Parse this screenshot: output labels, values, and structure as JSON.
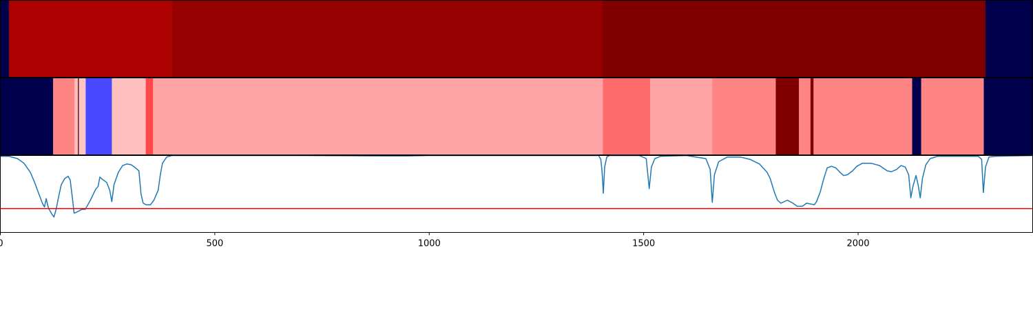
{
  "chart_data": {
    "type": "heatmap",
    "xlim": [
      0,
      2407
    ],
    "x_ticks": [
      0,
      500,
      1000,
      1500,
      2000
    ],
    "x_tick_labels": [
      "0",
      "500",
      "1000",
      "1500",
      "2000"
    ],
    "top_band": {
      "segments": [
        {
          "x0": 0,
          "x1": 20,
          "color": "#00004c"
        },
        {
          "x0": 20,
          "x1": 400,
          "color": "#ad0000"
        },
        {
          "x0": 400,
          "x1": 1405,
          "color": "#960000"
        },
        {
          "x0": 1405,
          "x1": 2297,
          "color": "#800000"
        },
        {
          "x0": 2297,
          "x1": 2407,
          "color": "#00004c"
        }
      ]
    },
    "middle_band": {
      "segments": [
        {
          "x0": 0,
          "x1": 123,
          "color": "#00004c"
        },
        {
          "x0": 123,
          "x1": 173,
          "color": "#ff8484"
        },
        {
          "x0": 173,
          "x1": 181,
          "color": "#ffbdbd"
        },
        {
          "x0": 181,
          "x1": 183,
          "color": "#400000"
        },
        {
          "x0": 183,
          "x1": 199,
          "color": "#ffc4c4"
        },
        {
          "x0": 199,
          "x1": 260,
          "color": "#4848ff"
        },
        {
          "x0": 260,
          "x1": 339,
          "color": "#ffc0c0"
        },
        {
          "x0": 339,
          "x1": 356,
          "color": "#ff4848"
        },
        {
          "x0": 356,
          "x1": 1405,
          "color": "#ffa4a4"
        },
        {
          "x0": 1405,
          "x1": 1515,
          "color": "#ff6a6a"
        },
        {
          "x0": 1515,
          "x1": 1660,
          "color": "#ffa4a4"
        },
        {
          "x0": 1660,
          "x1": 1808,
          "color": "#ff8484"
        },
        {
          "x0": 1808,
          "x1": 1862,
          "color": "#800000"
        },
        {
          "x0": 1862,
          "x1": 1889,
          "color": "#ff8484"
        },
        {
          "x0": 1889,
          "x1": 1896,
          "color": "#800000"
        },
        {
          "x0": 1896,
          "x1": 2126,
          "color": "#ff8484"
        },
        {
          "x0": 2126,
          "x1": 2147,
          "color": "#00004c"
        },
        {
          "x0": 2147,
          "x1": 2293,
          "color": "#ff8484"
        },
        {
          "x0": 2293,
          "x1": 2407,
          "color": "#00004c"
        }
      ]
    },
    "line_panel": {
      "ylim": [
        0,
        1
      ],
      "threshold": 0.31,
      "threshold_color": "#ff0000",
      "line_color": "#1f77b4",
      "points": [
        [
          0,
          0.99
        ],
        [
          20,
          0.99
        ],
        [
          40,
          0.96
        ],
        [
          55,
          0.9
        ],
        [
          70,
          0.78
        ],
        [
          80,
          0.65
        ],
        [
          90,
          0.5
        ],
        [
          98,
          0.38
        ],
        [
          103,
          0.33
        ],
        [
          107,
          0.44
        ],
        [
          112,
          0.32
        ],
        [
          120,
          0.24
        ],
        [
          125,
          0.2
        ],
        [
          130,
          0.3
        ],
        [
          135,
          0.44
        ],
        [
          142,
          0.62
        ],
        [
          150,
          0.7
        ],
        [
          158,
          0.73
        ],
        [
          163,
          0.68
        ],
        [
          168,
          0.45
        ],
        [
          172,
          0.25
        ],
        [
          180,
          0.27
        ],
        [
          190,
          0.3
        ],
        [
          198,
          0.3
        ],
        [
          210,
          0.42
        ],
        [
          222,
          0.56
        ],
        [
          228,
          0.6
        ],
        [
          232,
          0.72
        ],
        [
          238,
          0.69
        ],
        [
          248,
          0.65
        ],
        [
          255,
          0.55
        ],
        [
          260,
          0.4
        ],
        [
          265,
          0.62
        ],
        [
          275,
          0.78
        ],
        [
          285,
          0.87
        ],
        [
          295,
          0.89
        ],
        [
          305,
          0.88
        ],
        [
          315,
          0.84
        ],
        [
          323,
          0.8
        ],
        [
          328,
          0.5
        ],
        [
          333,
          0.38
        ],
        [
          340,
          0.36
        ],
        [
          350,
          0.36
        ],
        [
          358,
          0.42
        ],
        [
          368,
          0.55
        ],
        [
          373,
          0.75
        ],
        [
          378,
          0.9
        ],
        [
          388,
          0.98
        ],
        [
          400,
          1.0
        ],
        [
          700,
          1.0
        ],
        [
          900,
          0.995
        ],
        [
          950,
          0.995
        ],
        [
          1000,
          1.0
        ],
        [
          1395,
          1.0
        ],
        [
          1400,
          0.95
        ],
        [
          1403,
          0.8
        ],
        [
          1406,
          0.51
        ],
        [
          1409,
          0.85
        ],
        [
          1414,
          0.98
        ],
        [
          1420,
          1.0
        ],
        [
          1490,
          1.0
        ],
        [
          1506,
          0.96
        ],
        [
          1513,
          0.57
        ],
        [
          1518,
          0.85
        ],
        [
          1526,
          0.96
        ],
        [
          1540,
          0.99
        ],
        [
          1600,
          1.0
        ],
        [
          1645,
          0.96
        ],
        [
          1655,
          0.82
        ],
        [
          1660,
          0.39
        ],
        [
          1665,
          0.75
        ],
        [
          1675,
          0.92
        ],
        [
          1695,
          0.98
        ],
        [
          1725,
          0.98
        ],
        [
          1748,
          0.95
        ],
        [
          1770,
          0.89
        ],
        [
          1788,
          0.78
        ],
        [
          1795,
          0.7
        ],
        [
          1805,
          0.52
        ],
        [
          1812,
          0.42
        ],
        [
          1820,
          0.38
        ],
        [
          1835,
          0.42
        ],
        [
          1848,
          0.38
        ],
        [
          1858,
          0.34
        ],
        [
          1870,
          0.34
        ],
        [
          1880,
          0.38
        ],
        [
          1898,
          0.36
        ],
        [
          1903,
          0.4
        ],
        [
          1912,
          0.53
        ],
        [
          1920,
          0.7
        ],
        [
          1928,
          0.84
        ],
        [
          1938,
          0.86
        ],
        [
          1948,
          0.84
        ],
        [
          1958,
          0.78
        ],
        [
          1966,
          0.74
        ],
        [
          1975,
          0.75
        ],
        [
          1987,
          0.8
        ],
        [
          1997,
          0.86
        ],
        [
          2010,
          0.9
        ],
        [
          2030,
          0.9
        ],
        [
          2050,
          0.87
        ],
        [
          2068,
          0.8
        ],
        [
          2078,
          0.79
        ],
        [
          2090,
          0.82
        ],
        [
          2100,
          0.87
        ],
        [
          2110,
          0.85
        ],
        [
          2118,
          0.75
        ],
        [
          2123,
          0.45
        ],
        [
          2128,
          0.6
        ],
        [
          2135,
          0.74
        ],
        [
          2140,
          0.62
        ],
        [
          2145,
          0.45
        ],
        [
          2150,
          0.7
        ],
        [
          2158,
          0.88
        ],
        [
          2168,
          0.96
        ],
        [
          2185,
          0.99
        ],
        [
          2280,
          0.99
        ],
        [
          2288,
          0.95
        ],
        [
          2292,
          0.52
        ],
        [
          2297,
          0.85
        ],
        [
          2305,
          0.98
        ],
        [
          2320,
          0.99
        ],
        [
          2407,
          1.0
        ]
      ]
    }
  }
}
